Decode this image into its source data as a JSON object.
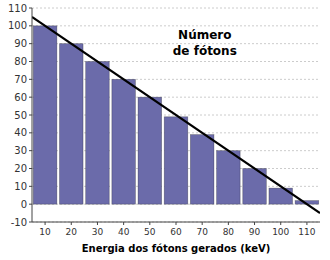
{
  "chart_data": {
    "type": "bar",
    "title": "Número de fótons",
    "xlabel": "Energia dos fótons gerados (keV)",
    "x": [
      10,
      20,
      30,
      40,
      50,
      60,
      70,
      80,
      90,
      100,
      110
    ],
    "series": [
      {
        "type": "bar",
        "color": "#6B6BAA",
        "values": [
          100,
          90,
          80,
          70,
          60,
          49,
          39,
          30,
          20,
          9,
          2
        ]
      },
      {
        "type": "line",
        "color": "#000000",
        "x": [
          5,
          115
        ],
        "values": [
          105,
          -5
        ]
      }
    ],
    "xlim": [
      5,
      115
    ],
    "ylim": [
      -10,
      110
    ],
    "xticks": [
      10,
      20,
      30,
      40,
      50,
      60,
      70,
      80,
      90,
      100,
      110
    ],
    "yticks": [
      -10,
      0,
      10,
      20,
      30,
      40,
      50,
      60,
      70,
      80,
      90,
      100,
      110
    ],
    "grid": true
  }
}
